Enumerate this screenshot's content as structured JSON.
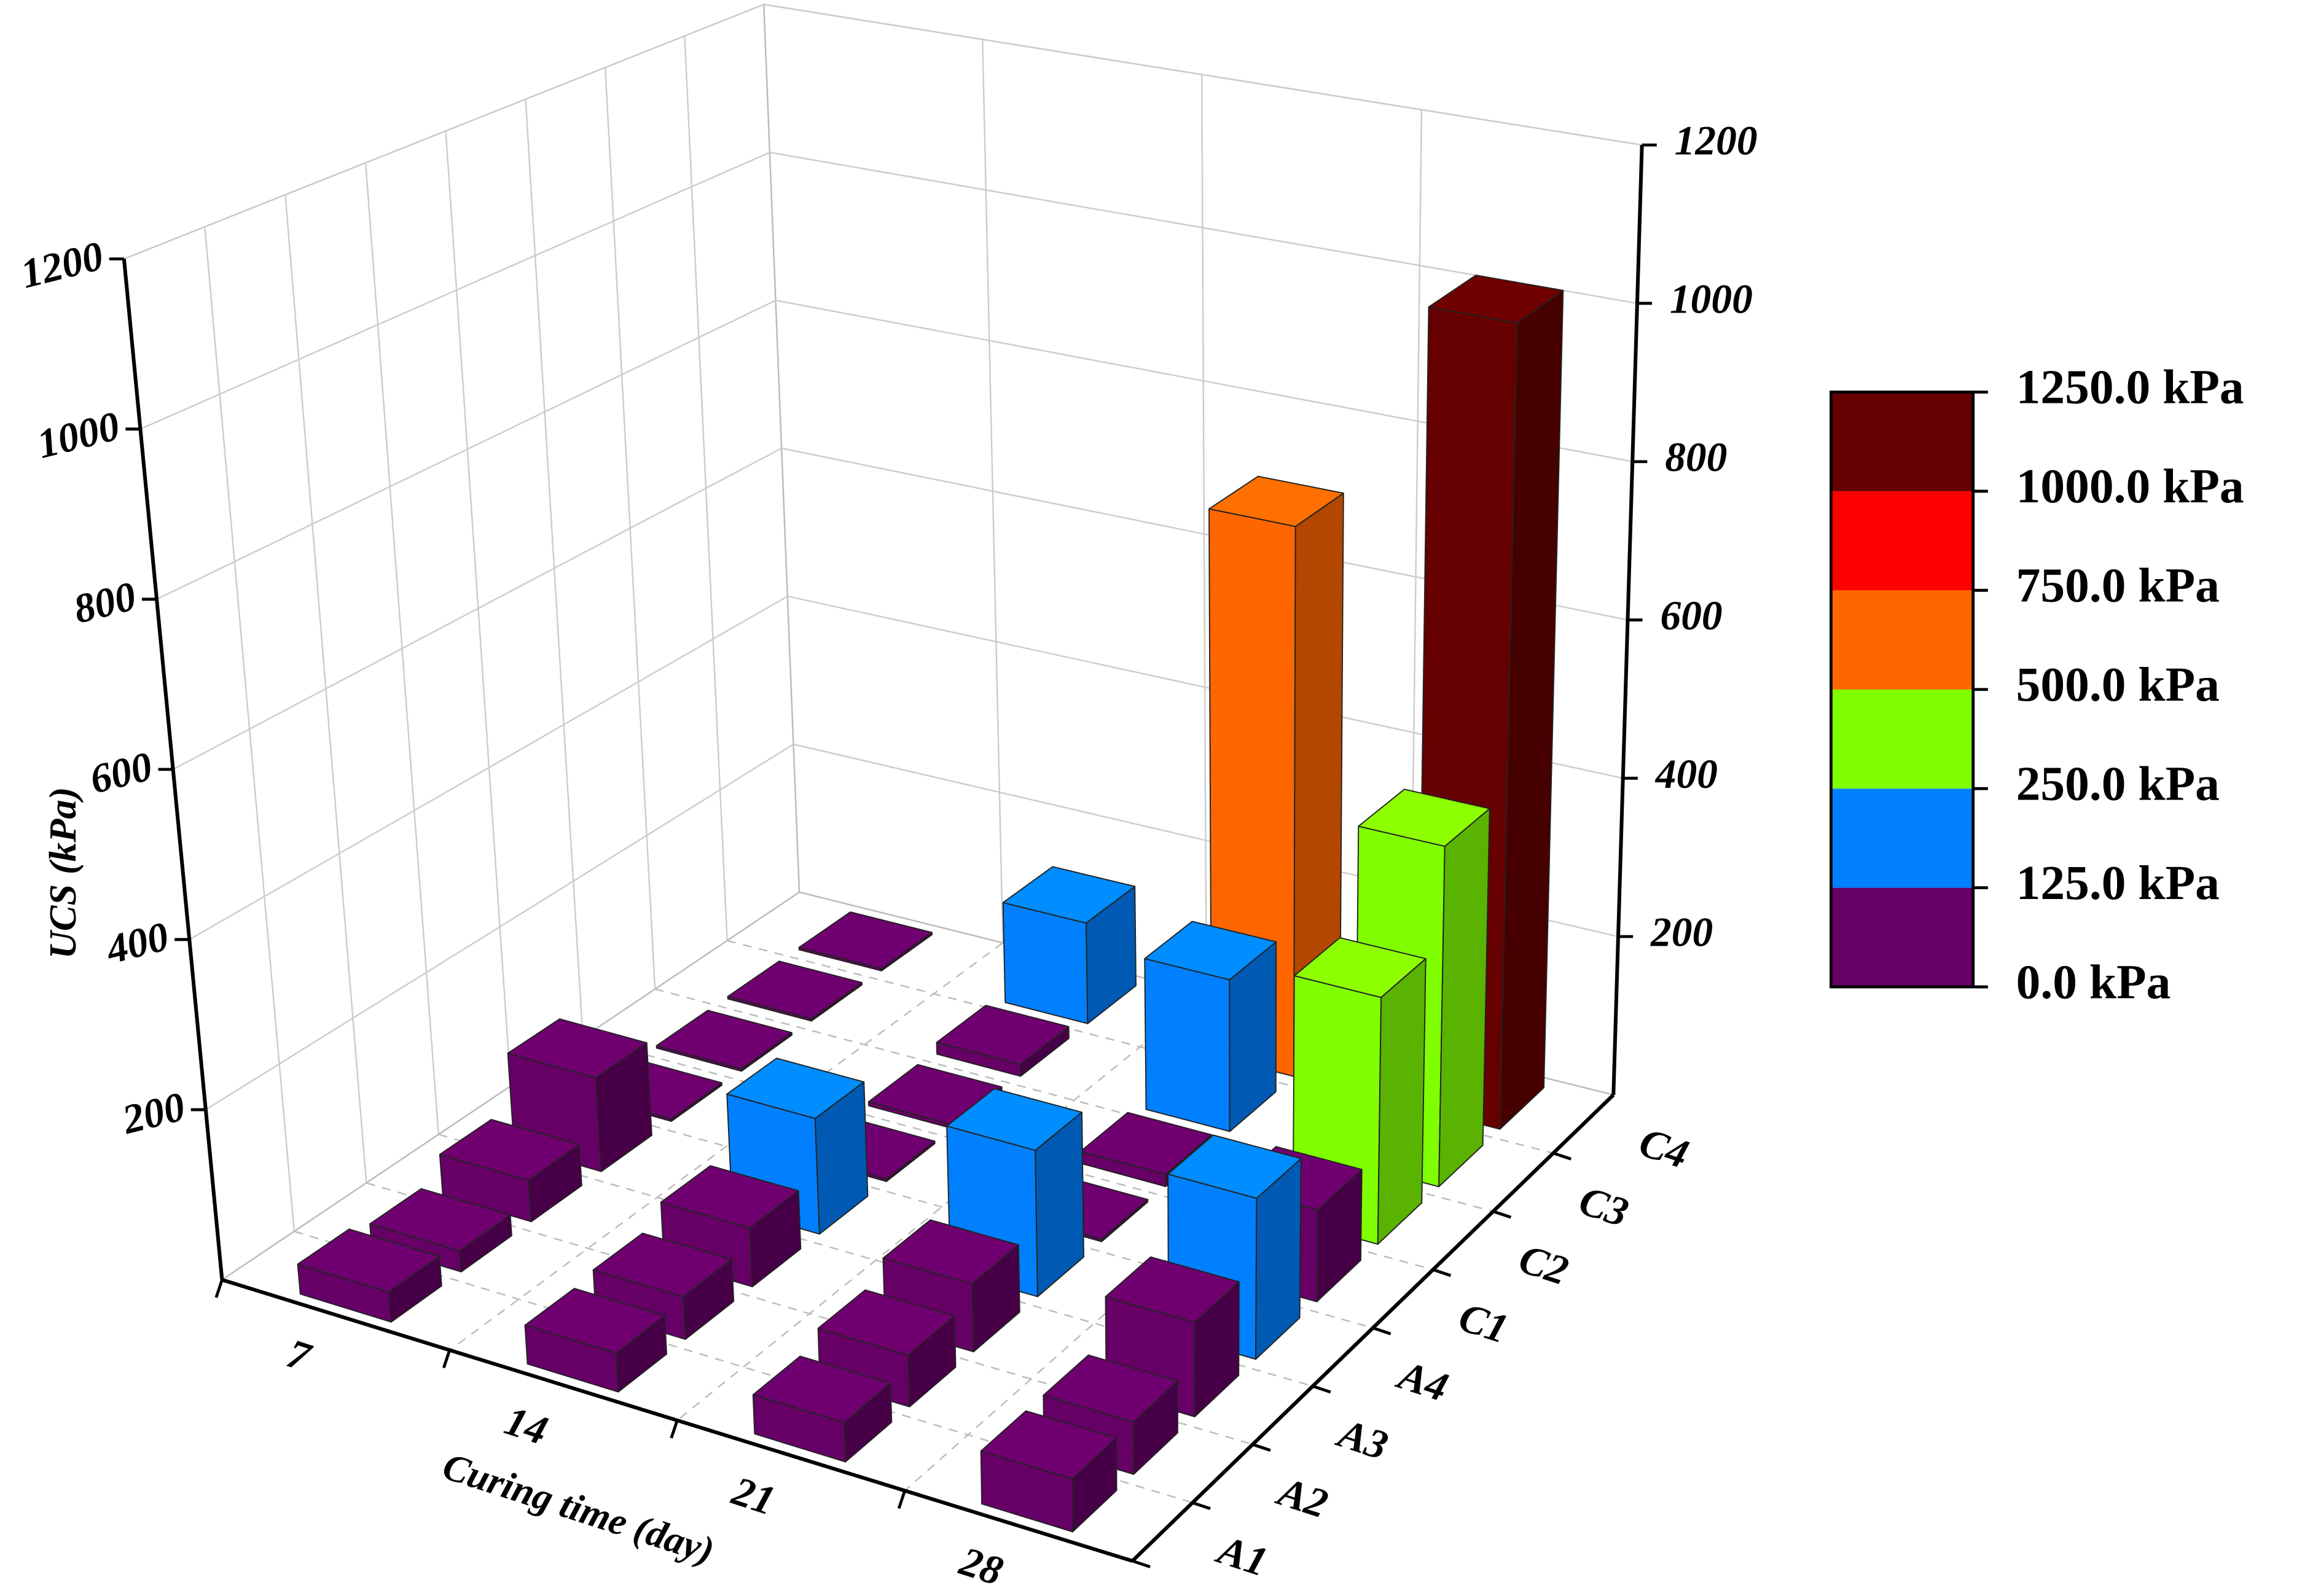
{
  "chart_data": {
    "type": "bar3d",
    "x_label": "Curing time (day)",
    "z_label": "UCS (kPa)",
    "categories": [
      "7",
      "14",
      "21",
      "28"
    ],
    "series": [
      {
        "name": "A1",
        "values": [
          35,
          45,
          45,
          60
        ]
      },
      {
        "name": "A2",
        "values": [
          25,
          50,
          60,
          60
        ]
      },
      {
        "name": "A3",
        "values": [
          50,
          70,
          80,
          110
        ]
      },
      {
        "name": "A4",
        "values": [
          115,
          140,
          175,
          190
        ]
      },
      {
        "name": "C1",
        "values": [
          3,
          3,
          3,
          110
        ]
      },
      {
        "name": "C2",
        "values": [
          3,
          5,
          15,
          300
        ]
      },
      {
        "name": "C3",
        "values": [
          3,
          15,
          190,
          420
        ]
      },
      {
        "name": "C4",
        "values": [
          3,
          130,
          700,
          1010
        ]
      }
    ],
    "zlim": [
      0,
      1200
    ],
    "zticks": [
      200,
      400,
      600,
      800,
      1000,
      1200
    ],
    "grid": true,
    "colorbar": {
      "levels": [
        {
          "value": 0,
          "label": "0.0 kPa"
        },
        {
          "value": 125,
          "label": "125.0 kPa"
        },
        {
          "value": 250,
          "label": "250.0 kPa"
        },
        {
          "value": 500,
          "label": "500.0 kPa"
        },
        {
          "value": 750,
          "label": "750.0 kPa"
        },
        {
          "value": 1000,
          "label": "1000.0 kPa"
        },
        {
          "value": 1250,
          "label": "1250.0 kPa"
        }
      ],
      "colors": [
        "#660066",
        "#0080ff",
        "#80ff00",
        "#ff6600",
        "#ff0000",
        "#660000"
      ]
    }
  }
}
